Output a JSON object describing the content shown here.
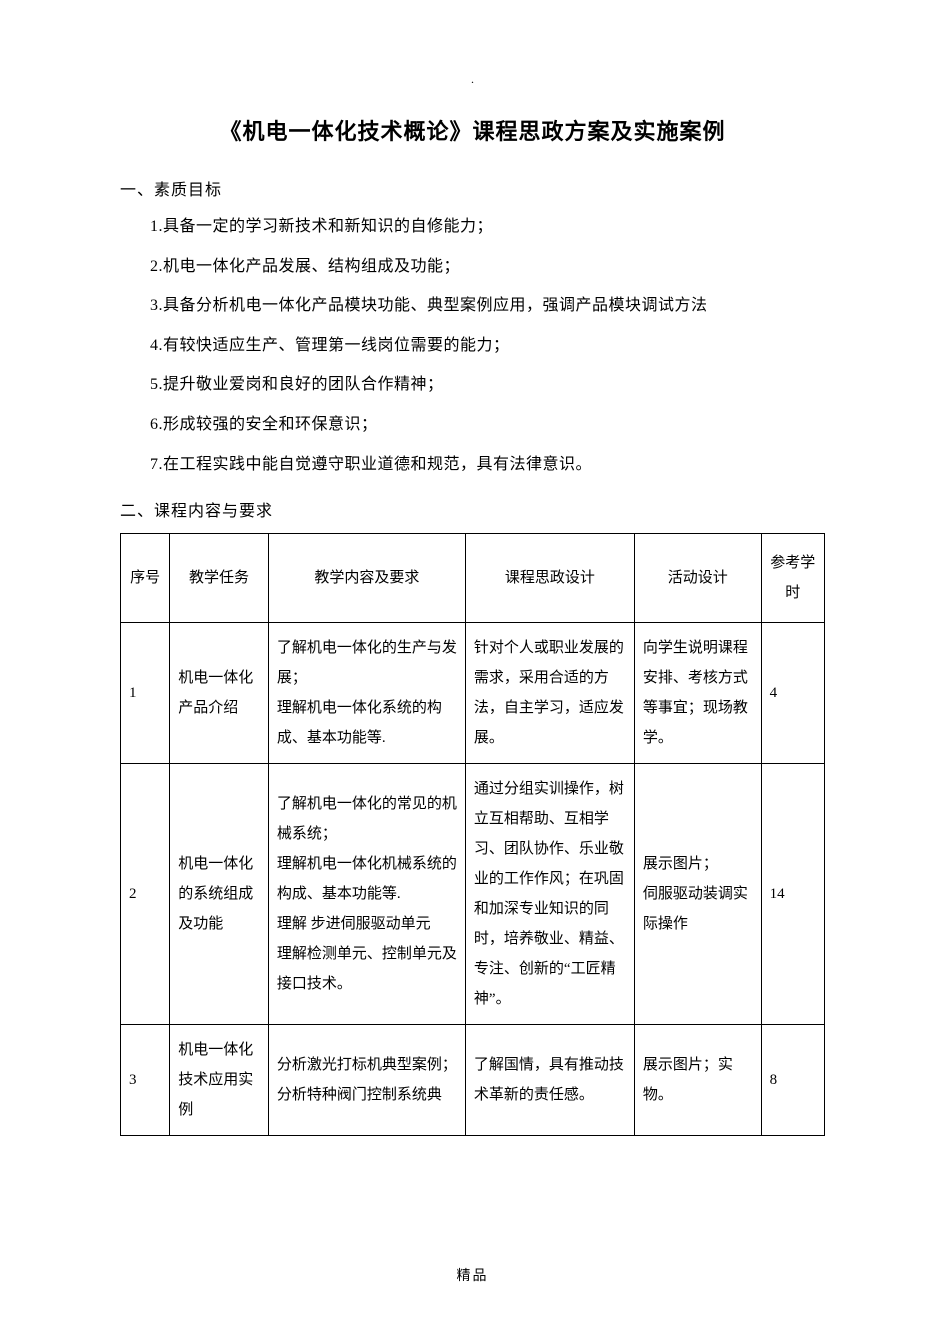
{
  "top_mark": ".",
  "title": "《机电一体化技术概论》课程思政方案及实施案例",
  "footer_mark": "精品",
  "section1": {
    "heading": "一、素质目标",
    "items": [
      "1.具备一定的学习新技术和新知识的自修能力；",
      "2.机电一体化产品发展、结构组成及功能；",
      "3.具备分析机电一体化产品模块功能、典型案例应用，强调产品模块调试方法",
      "4.有较快适应生产、管理第一线岗位需要的能力；",
      "5.提升敬业爱岗和良好的团队合作精神；",
      "6.形成较强的安全和环保意识；",
      "7.在工程实践中能自觉遵守职业道德和规范，具有法律意识。"
    ]
  },
  "section2": {
    "heading": "二、课程内容与要求",
    "columns": [
      "序号",
      "教学任务",
      "教学内容及要求",
      "课程思政设计",
      "活动设计",
      "参考学时"
    ],
    "rows": [
      {
        "idx": "1",
        "task": "机电一体化产品介绍",
        "req": "了解机电一体化的生产与发展；\n理解机电一体化系统的构成、基本功能等.",
        "sz": "针对个人或职业发展的需求，采用合适的方法，自主学习，适应发展。",
        "act": "向学生说明课程安排、考核方式等事宜；现场教学。",
        "hrs": "4"
      },
      {
        "idx": "2",
        "task": "机电一体化的系统组成及功能",
        "req": "了解机电一体化的常见的机械系统；\n理解机电一体化机械系统的构成、基本功能等.\n理解 步进伺服驱动单元\n理解检测单元、控制单元及接口技术。",
        "sz": "通过分组实训操作，树立互相帮助、互相学习、团队协作、乐业敬业的工作作风；在巩固和加深专业知识的同时，培养敬业、精益、专注、创新的“工匠精神”。",
        "act": "展示图片；\n伺服驱动装调实际操作",
        "hrs": "14"
      },
      {
        "idx": "3",
        "task": "机电一体化技术应用实例",
        "req": "分析激光打标机典型案例；\n分析特种阀门控制系统典",
        "sz": "了解国情，具有推动技术革新的责任感。",
        "act": "展示图片；实物。",
        "hrs": "8"
      }
    ]
  }
}
